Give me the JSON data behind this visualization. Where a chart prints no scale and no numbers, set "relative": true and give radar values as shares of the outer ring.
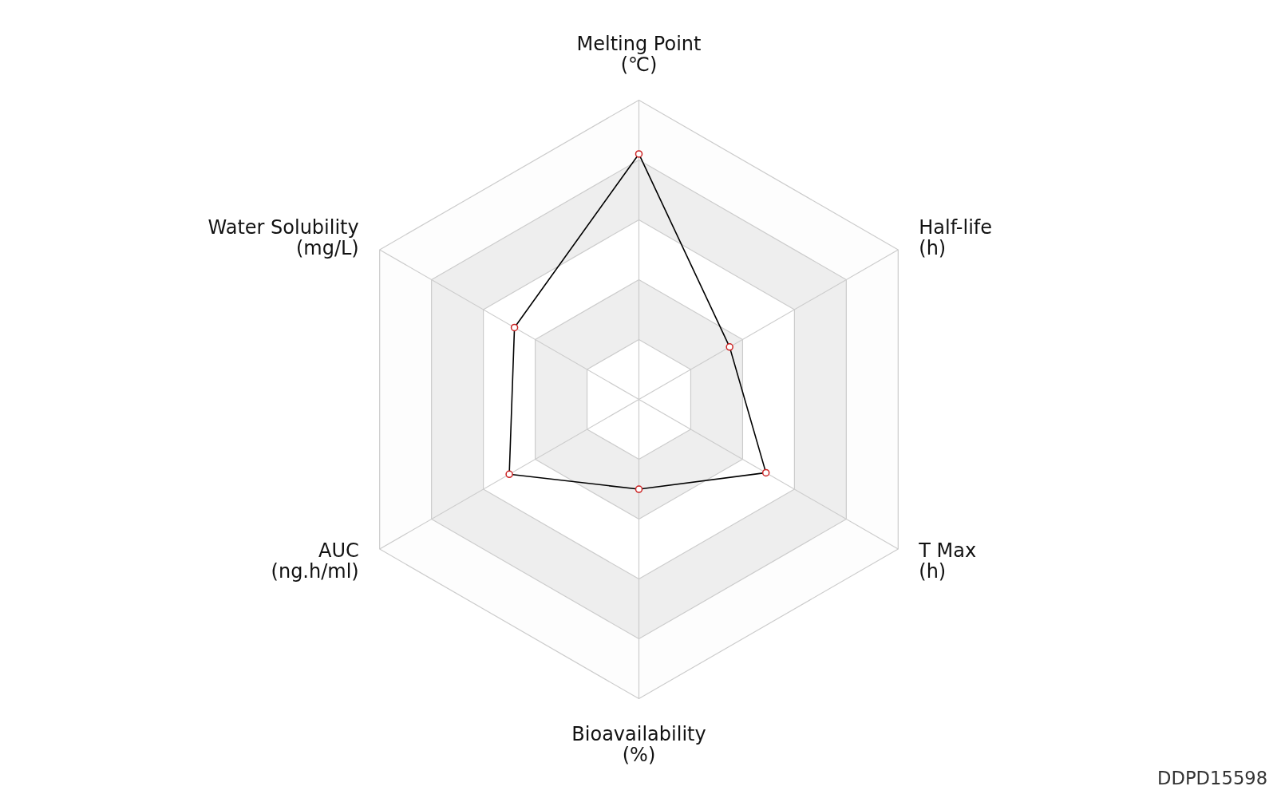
{
  "chart_data": {
    "type": "radar",
    "relative": true,
    "categories": [
      "Melting Point\n(℃)",
      "Half-life\n(h)",
      "T Max\n(h)",
      "Bioavailability\n(%)",
      "AUC\n(ng.h/ml)",
      "Water Solubility\n(mg/L)"
    ],
    "series": [
      {
        "color": "#000000",
        "values": [
          0.82,
          0.35,
          0.49,
          0.3,
          0.5,
          0.48
        ]
      }
    ],
    "marker": "circle",
    "annotations": [
      "DDPD15598"
    ]
  }
}
